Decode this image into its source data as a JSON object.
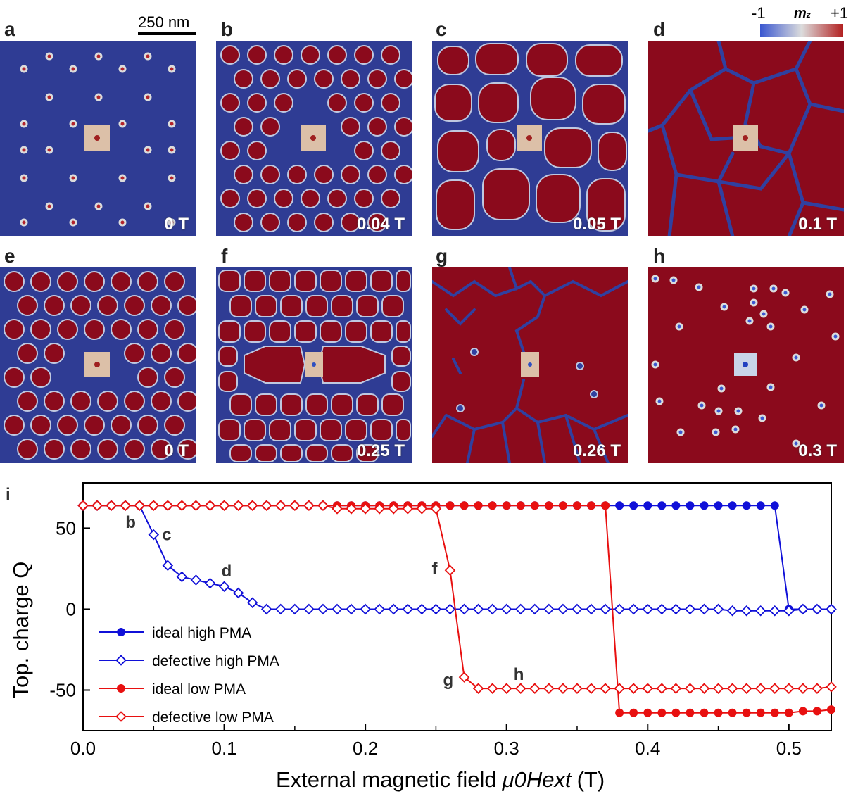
{
  "scale_bar": "250 nm",
  "colorbar": {
    "min": "-1",
    "title": "m",
    "subscript": "z",
    "max": "+1",
    "colors": [
      "#3a57d0",
      "#dcdcdc",
      "#b22020"
    ]
  },
  "panels": [
    {
      "letter": "a",
      "field": "0 T"
    },
    {
      "letter": "b",
      "field": "0.04 T"
    },
    {
      "letter": "c",
      "field": "0.05 T"
    },
    {
      "letter": "d",
      "field": "0.1 T"
    },
    {
      "letter": "e",
      "field": "0 T"
    },
    {
      "letter": "f",
      "field": "0.25 T"
    },
    {
      "letter": "g",
      "field": "0.26 T"
    },
    {
      "letter": "h",
      "field": "0.3 T"
    }
  ],
  "chart_data": {
    "type": "line",
    "panel_letter": "i",
    "xlabel": "External magnetic field",
    "xlabel_symbol": "μ0Hext",
    "xlabel_unit": "(T)",
    "ylabel": "Top. charge Q",
    "xlim": [
      0.0,
      0.53
    ],
    "ylim": [
      -75,
      78
    ],
    "xticks": [
      "0.0",
      "0.1",
      "0.2",
      "0.3",
      "0.4",
      "0.5"
    ],
    "yticks": [
      "50",
      "0",
      "-50"
    ],
    "series": [
      {
        "name": "ideal high PMA",
        "color": "#1010d8",
        "marker": "filled-circle",
        "x": [
          0,
          0.01,
          0.02,
          0.03,
          0.04,
          0.05,
          0.06,
          0.07,
          0.08,
          0.09,
          0.1,
          0.11,
          0.12,
          0.13,
          0.14,
          0.15,
          0.16,
          0.17,
          0.18,
          0.19,
          0.2,
          0.21,
          0.22,
          0.23,
          0.24,
          0.25,
          0.26,
          0.27,
          0.28,
          0.29,
          0.3,
          0.31,
          0.32,
          0.33,
          0.34,
          0.35,
          0.36,
          0.37,
          0.38,
          0.39,
          0.4,
          0.41,
          0.42,
          0.43,
          0.44,
          0.45,
          0.46,
          0.47,
          0.48,
          0.49,
          0.5,
          0.51,
          0.52,
          0.53
        ],
        "y": [
          64,
          64,
          64,
          64,
          64,
          64,
          64,
          64,
          64,
          64,
          64,
          64,
          64,
          64,
          64,
          64,
          64,
          64,
          64,
          64,
          64,
          64,
          64,
          64,
          64,
          64,
          64,
          64,
          64,
          64,
          64,
          64,
          64,
          64,
          64,
          64,
          64,
          64,
          64,
          64,
          64,
          64,
          64,
          64,
          64,
          64,
          64,
          64,
          64,
          64,
          0,
          0,
          0,
          0
        ]
      },
      {
        "name": "defective high PMA",
        "color": "#1010d8",
        "marker": "open-diamond",
        "x": [
          0,
          0.01,
          0.02,
          0.03,
          0.04,
          0.05,
          0.06,
          0.07,
          0.08,
          0.09,
          0.1,
          0.11,
          0.12,
          0.13,
          0.14,
          0.15,
          0.16,
          0.17,
          0.18,
          0.19,
          0.2,
          0.21,
          0.22,
          0.23,
          0.24,
          0.25,
          0.26,
          0.27,
          0.28,
          0.29,
          0.3,
          0.31,
          0.32,
          0.33,
          0.34,
          0.35,
          0.36,
          0.37,
          0.38,
          0.39,
          0.4,
          0.41,
          0.42,
          0.43,
          0.44,
          0.45,
          0.46,
          0.47,
          0.48,
          0.49,
          0.5,
          0.51,
          0.52,
          0.53
        ],
        "y": [
          64,
          64,
          64,
          64,
          64,
          46,
          27,
          20,
          18,
          16,
          14,
          10,
          4,
          0,
          0,
          0,
          0,
          0,
          0,
          0,
          0,
          0,
          0,
          0,
          0,
          0,
          0,
          0,
          0,
          0,
          0,
          0,
          0,
          0,
          0,
          0,
          0,
          0,
          0,
          0,
          0,
          0,
          0,
          0,
          0,
          0,
          -1,
          -1,
          -1,
          -1,
          -1,
          0,
          0,
          0
        ]
      },
      {
        "name": "ideal low PMA",
        "color": "#e81010",
        "marker": "filled-circle",
        "x": [
          0,
          0.01,
          0.02,
          0.03,
          0.04,
          0.05,
          0.06,
          0.07,
          0.08,
          0.09,
          0.1,
          0.11,
          0.12,
          0.13,
          0.14,
          0.15,
          0.16,
          0.17,
          0.18,
          0.19,
          0.2,
          0.21,
          0.22,
          0.23,
          0.24,
          0.25,
          0.26,
          0.27,
          0.28,
          0.29,
          0.3,
          0.31,
          0.32,
          0.33,
          0.34,
          0.35,
          0.36,
          0.37,
          0.38,
          0.39,
          0.4,
          0.41,
          0.42,
          0.43,
          0.44,
          0.45,
          0.46,
          0.47,
          0.48,
          0.49,
          0.5,
          0.51,
          0.52,
          0.53
        ],
        "y": [
          64,
          64,
          64,
          64,
          64,
          64,
          64,
          64,
          64,
          64,
          64,
          64,
          64,
          64,
          64,
          64,
          64,
          64,
          64,
          64,
          64,
          64,
          64,
          64,
          64,
          64,
          64,
          64,
          64,
          64,
          64,
          64,
          64,
          64,
          64,
          64,
          64,
          64,
          -64,
          -64,
          -64,
          -64,
          -64,
          -64,
          -64,
          -64,
          -64,
          -64,
          -64,
          -64,
          -64,
          -63,
          -63,
          -62
        ]
      },
      {
        "name": "defective low PMA",
        "color": "#e81010",
        "marker": "open-diamond",
        "x": [
          0,
          0.01,
          0.02,
          0.03,
          0.04,
          0.05,
          0.06,
          0.07,
          0.08,
          0.09,
          0.1,
          0.11,
          0.12,
          0.13,
          0.14,
          0.15,
          0.16,
          0.17,
          0.18,
          0.19,
          0.2,
          0.21,
          0.22,
          0.23,
          0.24,
          0.25,
          0.26,
          0.27,
          0.28,
          0.29,
          0.3,
          0.31,
          0.32,
          0.33,
          0.34,
          0.35,
          0.36,
          0.37,
          0.38,
          0.39,
          0.4,
          0.41,
          0.42,
          0.43,
          0.44,
          0.45,
          0.46,
          0.47,
          0.48,
          0.49,
          0.5,
          0.51,
          0.52,
          0.53
        ],
        "y": [
          64,
          64,
          64,
          64,
          64,
          64,
          64,
          64,
          64,
          64,
          64,
          64,
          64,
          64,
          64,
          64,
          64,
          64,
          62,
          62,
          62,
          62,
          62,
          62,
          62,
          62,
          24,
          -42,
          -49,
          -49,
          -49,
          -49,
          -49,
          -49,
          -49,
          -49,
          -49,
          -49,
          -49,
          -49,
          -49,
          -49,
          -49,
          -49,
          -49,
          -49,
          -49,
          -49,
          -49,
          -49,
          -49,
          -49,
          -49,
          -48
        ]
      }
    ],
    "annotations": [
      {
        "text": "b",
        "x": 0.04,
        "y": 64
      },
      {
        "text": "c",
        "x": 0.05,
        "y": 46
      },
      {
        "text": "d",
        "x": 0.1,
        "y": 14
      },
      {
        "text": "f",
        "x": 0.26,
        "y": 24
      },
      {
        "text": "g",
        "x": 0.27,
        "y": -42
      },
      {
        "text": "h",
        "x": 0.3,
        "y": -49
      }
    ],
    "legend_position": "bottom-left"
  }
}
